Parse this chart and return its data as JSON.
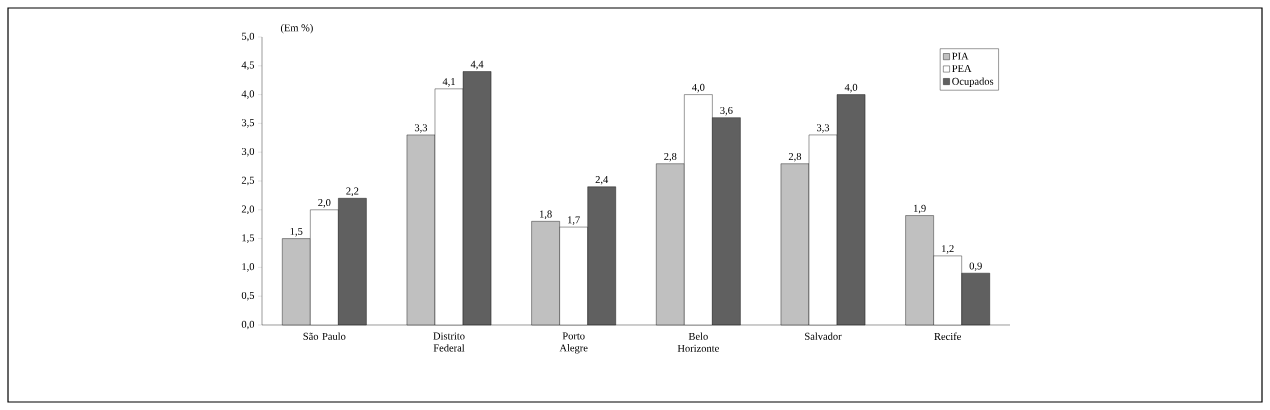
{
  "chart_data": {
    "type": "bar",
    "ylabel": "(Em %)",
    "categories": [
      "São Paulo",
      "Distrito Federal",
      "Porto Alegre",
      "Belo Horizonte",
      "Salvador",
      "Recife"
    ],
    "series": [
      {
        "name": "PIA",
        "color": "#c0c0c0",
        "values": [
          1.5,
          3.3,
          1.8,
          2.8,
          2.8,
          1.9
        ],
        "value_labels": [
          "1,5",
          "3,3",
          "1,8",
          "2,8",
          "2,8",
          "1,9"
        ]
      },
      {
        "name": "PEA",
        "color": "#ffffff",
        "values": [
          2.0,
          4.1,
          1.7,
          4.0,
          3.3,
          1.2
        ],
        "value_labels": [
          "2,0",
          "4,1",
          "1,7",
          "4,0",
          "3,3",
          "1,2"
        ]
      },
      {
        "name": "Ocupados",
        "color": "#606060",
        "values": [
          2.2,
          4.4,
          2.4,
          3.6,
          4.0,
          0.9
        ],
        "value_labels": [
          "2,2",
          "4,4",
          "2,4",
          "3,6",
          "4,0",
          "0,9"
        ]
      }
    ],
    "ylim": [
      0,
      5
    ],
    "yticks": [
      {
        "value": 0,
        "label": "0,0"
      },
      {
        "value": 0.5,
        "label": "0,5"
      },
      {
        "value": 1,
        "label": "1,0"
      },
      {
        "value": 1.5,
        "label": "1,5"
      },
      {
        "value": 2,
        "label": "2,0"
      },
      {
        "value": 2.5,
        "label": "2,5"
      },
      {
        "value": 3,
        "label": "3,0"
      },
      {
        "value": 3.5,
        "label": "3,5"
      },
      {
        "value": 4,
        "label": "4,0"
      },
      {
        "value": 4.5,
        "label": "4,5"
      },
      {
        "value": 5,
        "label": "5,0"
      }
    ],
    "legend": "top right",
    "grid": false
  }
}
